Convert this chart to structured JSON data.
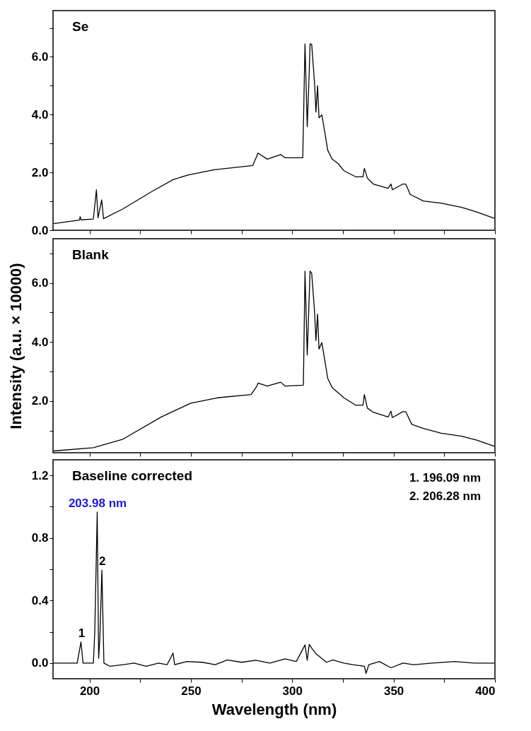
{
  "chart_data": [
    {
      "type": "line",
      "title": "Se",
      "tick_labels": "y",
      "xlim": [
        182,
        400
      ],
      "xticks": [
        200,
        {
          "value": 225,
          "label": null
        },
        250,
        {
          "value": 275,
          "label": null
        },
        300,
        {
          "value": 325,
          "label": null
        },
        350,
        {
          "value": 375,
          "label": null
        },
        400
      ],
      "ylim": [
        0,
        7.6
      ],
      "yticks": [
        {
          "value": 0,
          "label": "0.0"
        },
        {
          "value": 1,
          "label": null
        },
        {
          "value": 2,
          "label": "2.0"
        },
        {
          "value": 3,
          "label": null
        },
        {
          "value": 4,
          "label": "4.0"
        },
        {
          "value": 5,
          "label": null
        },
        {
          "value": 6,
          "label": "6.0"
        },
        {
          "value": 7,
          "label": null
        }
      ],
      "series": [
        {
          "color": "#000000",
          "x": [
            182.3,
            195.0,
            195.4,
            195.8,
            201.9,
            203.4,
            204.2,
            206.0,
            206.9,
            216.5,
            231.0,
            241.2,
            248.5,
            261.4,
            280.5,
            282.2,
            283.1,
            287.7,
            294.3,
            296.4,
            305.2,
            306.3,
            307.4,
            308.4,
            308.8,
            309.6,
            311.0,
            311.7,
            312.5,
            313.2,
            314.6,
            316.1,
            317.5,
            319.7,
            322.6,
            325.5,
            331.3,
            334.9,
            335.6,
            337.1,
            340.0,
            347.3,
            348.7,
            349.4,
            354.6,
            356.0,
            358.2,
            364.7,
            373.5,
            383.6,
            391.0,
            399.7
          ],
          "values": [
            0.23,
            0.35,
            0.47,
            0.36,
            0.39,
            1.4,
            0.43,
            1.05,
            0.4,
            0.74,
            1.35,
            1.75,
            1.91,
            2.09,
            2.24,
            2.51,
            2.67,
            2.46,
            2.62,
            2.51,
            2.51,
            6.45,
            3.58,
            5.51,
            6.45,
            6.43,
            5.1,
            4.09,
            5.0,
            3.89,
            3.99,
            3.38,
            2.77,
            2.46,
            2.31,
            2.06,
            1.85,
            1.85,
            2.14,
            1.8,
            1.6,
            1.45,
            1.6,
            1.4,
            1.6,
            1.6,
            1.24,
            1.01,
            0.94,
            0.79,
            0.63,
            0.41
          ]
        }
      ]
    },
    {
      "type": "line",
      "title": "Blank",
      "ylabel": "Intensity (a.u. × 10000)",
      "tick_labels": "y",
      "xlim": [
        182,
        400
      ],
      "xticks": [
        200,
        {
          "value": 225,
          "label": null
        },
        250,
        {
          "value": 275,
          "label": null
        },
        300,
        {
          "value": 325,
          "label": null
        },
        350,
        {
          "value": 375,
          "label": null
        },
        400
      ],
      "ylim": [
        0.25,
        7.5
      ],
      "yticks": [
        {
          "value": 1,
          "label": null
        },
        {
          "value": 2,
          "label": "2.0"
        },
        {
          "value": 3,
          "label": null
        },
        {
          "value": 4,
          "label": "4.0"
        },
        {
          "value": 5,
          "label": null
        },
        {
          "value": 6,
          "label": "6.0"
        },
        {
          "value": 7,
          "label": null
        }
      ],
      "series": [
        {
          "color": "#000000",
          "x": [
            182.3,
            201.9,
            216.5,
            235.4,
            249.9,
            263.0,
            279.7,
            282.6,
            283.1,
            287.7,
            294.3,
            296.4,
            305.5,
            306.3,
            307.4,
            308.8,
            309.6,
            311.0,
            311.7,
            312.5,
            313.2,
            314.6,
            316.1,
            317.5,
            319.7,
            325.5,
            331.3,
            334.9,
            335.6,
            337.1,
            340.0,
            347.3,
            348.7,
            349.4,
            354.6,
            356.0,
            359.0,
            364.7,
            373.5,
            383.6,
            391.0,
            399.7
          ],
          "values": [
            0.31,
            0.42,
            0.71,
            1.46,
            1.93,
            2.11,
            2.22,
            2.51,
            2.61,
            2.51,
            2.64,
            2.51,
            2.54,
            6.4,
            3.56,
            6.4,
            6.33,
            5.05,
            4.05,
            4.95,
            3.76,
            3.98,
            3.37,
            2.77,
            2.46,
            2.11,
            1.86,
            1.86,
            2.22,
            1.76,
            1.62,
            1.46,
            1.66,
            1.44,
            1.64,
            1.64,
            1.21,
            1.07,
            0.91,
            0.81,
            0.68,
            0.47
          ]
        }
      ]
    },
    {
      "type": "line",
      "title": "Baseline corrected",
      "xlabel": "Wavelength (nm)",
      "xlim": [
        182,
        400
      ],
      "xticks": [
        200,
        {
          "value": 225,
          "label": null
        },
        250,
        {
          "value": 275,
          "label": null
        },
        300,
        {
          "value": 325,
          "label": null
        },
        350,
        {
          "value": 375,
          "label": null
        },
        400
      ],
      "ylim": [
        -0.1,
        1.3
      ],
      "yticks": [
        {
          "value": 0,
          "label": "0.0"
        },
        {
          "value": 0.2,
          "label": null
        },
        {
          "value": 0.4,
          "label": "0.4"
        },
        {
          "value": 0.6,
          "label": null
        },
        {
          "value": 0.8,
          "label": "0.8"
        },
        {
          "value": 1.0,
          "label": null
        },
        {
          "value": 1.2,
          "label": "1.2"
        }
      ],
      "annotations": [
        {
          "text": "203.98 nm",
          "x": 203.98,
          "y": 0.966
        },
        {
          "text": "1",
          "x": 196.09,
          "y": 0.135
        },
        {
          "text": "2",
          "x": 206.28,
          "y": 0.594
        },
        "1. 196.09 nm",
        "2. 206.28 nm"
      ],
      "series": [
        {
          "color": "#000000",
          "x": [
            182.3,
            193.9,
            195.8,
            196.8,
            201.9,
            202.6,
            203.8,
            204.5,
            205.1,
            206.1,
            207.1,
            210.0,
            216.5,
            222.0,
            228.0,
            234.0,
            238.3,
            241.2,
            242.0,
            248.0,
            255.8,
            262.0,
            268.0,
            275.0,
            282.0,
            289.0,
            296.4,
            302.0,
            306.3,
            307.4,
            308.4,
            309.9,
            311.7,
            316.9,
            320.0,
            325.5,
            330.0,
            335.6,
            336.4,
            337.8,
            343.0,
            348.7,
            354.6,
            360.0,
            369.0,
            380.0,
            390.0,
            399.7
          ],
          "values": [
            0.0,
            0.0,
            0.135,
            0.0,
            0.0,
            0.2,
            0.966,
            0.03,
            0.16,
            0.594,
            0.0,
            -0.02,
            -0.01,
            0.0,
            -0.02,
            0.0,
            -0.01,
            0.064,
            -0.01,
            0.01,
            0.005,
            -0.01,
            0.02,
            0.005,
            0.018,
            0.0,
            0.027,
            0.01,
            0.116,
            0.018,
            0.12,
            0.09,
            0.06,
            0.005,
            0.02,
            0.0,
            -0.01,
            -0.02,
            -0.066,
            -0.01,
            0.01,
            -0.03,
            0.0,
            -0.01,
            0.0,
            0.01,
            0.0,
            0.0
          ]
        }
      ]
    }
  ]
}
